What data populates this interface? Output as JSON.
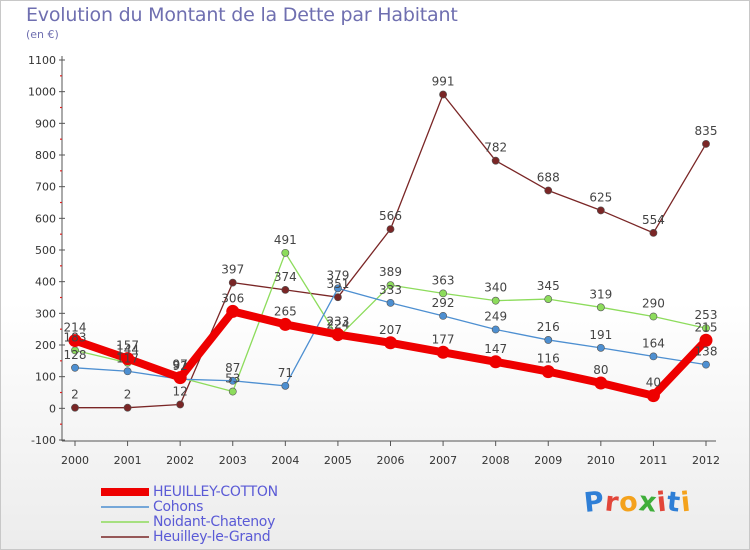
{
  "header": {
    "title": "Evolution du Montant de la Dette par Habitant",
    "unit": "(en €)"
  },
  "brand": {
    "text": "Proxiti",
    "letter_colors": [
      "#2f7fd6",
      "#e2463a",
      "#f4a21c",
      "#3fae3a",
      "#e2463a",
      "#2f7fd6",
      "#f4a21c"
    ]
  },
  "chart_data": {
    "type": "line",
    "title": "Evolution du Montant de la Dette par Habitant",
    "ylabel": "(en €)",
    "xlabel": "",
    "ylim": [
      -100,
      1100
    ],
    "yticks": [
      -100,
      0,
      100,
      200,
      300,
      400,
      500,
      600,
      700,
      800,
      900,
      1000,
      1100
    ],
    "grid": false,
    "legend_position": "bottom-left",
    "x": [
      2000,
      2001,
      2002,
      2003,
      2004,
      2005,
      2006,
      2007,
      2008,
      2009,
      2010,
      2011,
      2012
    ],
    "series": [
      {
        "name": "Heuilley-le-Grand",
        "color": "#7a2626",
        "values": [
          2,
          2,
          12,
          397,
          374,
          351,
          566,
          991,
          782,
          688,
          625,
          554,
          835
        ],
        "labels": [
          "2",
          "2",
          "12",
          "397",
          "374",
          "351",
          "566",
          "991",
          "782",
          "688",
          "625",
          "554",
          "835"
        ]
      },
      {
        "name": "Noidant-Chatenoy",
        "color": "#8ddc5c",
        "values": [
          183,
          144,
          97,
          53,
          491,
          224,
          389,
          363,
          340,
          345,
          319,
          290,
          253
        ],
        "labels": [
          "183",
          "144",
          "97",
          "53",
          "491",
          "224",
          "389",
          "363",
          "340",
          "345",
          "319",
          "290",
          "253"
        ]
      },
      {
        "name": "Cohons",
        "color": "#4d8fd1",
        "values": [
          128,
          117,
          92,
          87,
          71,
          379,
          333,
          292,
          249,
          216,
          191,
          164,
          138
        ],
        "labels": [
          "128",
          "117",
          "92",
          "87",
          "71",
          "379",
          "333",
          "292",
          "249",
          "216",
          "191",
          "164",
          "138"
        ]
      },
      {
        "name": "HEUILLEY-COTTON",
        "color": "#ee0000",
        "values": [
          214,
          157,
          97,
          306,
          265,
          233,
          207,
          177,
          147,
          116,
          80,
          40,
          215
        ],
        "labels": [
          "214",
          "157",
          "97",
          "306",
          "265",
          "233",
          "207",
          "177",
          "147",
          "116",
          "80",
          "40",
          "215"
        ]
      }
    ]
  },
  "legend": [
    {
      "label": "HEUILLEY-COTTON",
      "color": "#ee0000"
    },
    {
      "label": "Cohons",
      "color": "#4d8fd1"
    },
    {
      "label": "Noidant-Chatenoy",
      "color": "#8ddc5c"
    },
    {
      "label": "Heuilley-le-Grand",
      "color": "#7a2626"
    }
  ]
}
